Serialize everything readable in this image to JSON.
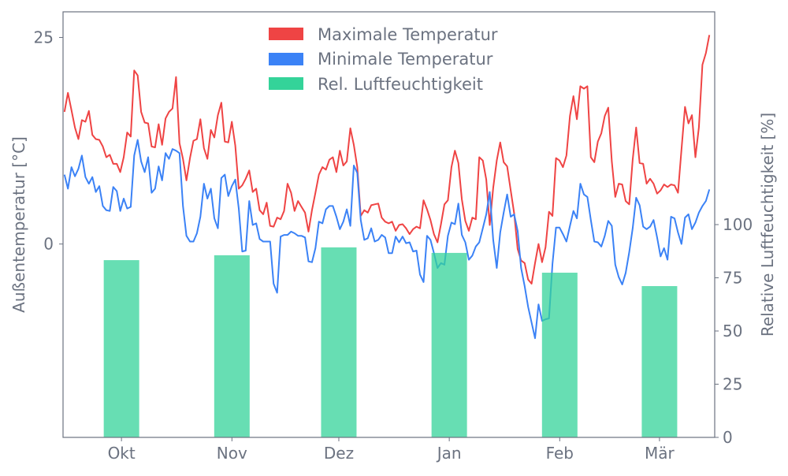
{
  "chart_data": {
    "type": "line+bar",
    "title": "",
    "xlabel": "",
    "ylabel_left": "Außentemperatur [°C]",
    "ylabel_right": "Relative Luftfeuchtigkeit [%]",
    "ylim_left": [
      -23.4,
      28.1
    ],
    "ylim_right": [
      0,
      200
    ],
    "xlim_days": [
      -0.4,
      182.5
    ],
    "x_start_day": 0,
    "x_end_day": 181,
    "x_ticks": [
      {
        "label": "Okt",
        "day": 16
      },
      {
        "label": "Nov",
        "day": 47
      },
      {
        "label": "Dez",
        "day": 77
      },
      {
        "label": "Jan",
        "day": 108
      },
      {
        "label": "Feb",
        "day": 139
      },
      {
        "label": "Mär",
        "day": 167
      }
    ],
    "y_ticks_left": [
      {
        "label": "0",
        "value": 0
      },
      {
        "label": "25",
        "value": 25
      }
    ],
    "y_ticks_right": [
      {
        "label": "0",
        "value": 0
      },
      {
        "label": "25",
        "value": 25
      },
      {
        "label": "50",
        "value": 50
      },
      {
        "label": "75",
        "value": 75
      },
      {
        "label": "100",
        "value": 100
      }
    ],
    "grid": false,
    "legend_position": "top-center",
    "series": [
      {
        "name": "Maximale Temperatur",
        "type": "line",
        "axis": "left",
        "color": "#ef4444",
        "values": [
          16.0,
          18.3,
          16.2,
          14.1,
          12.7,
          15.0,
          14.8,
          16.1,
          13.2,
          12.7,
          12.6,
          11.8,
          10.5,
          10.8,
          9.7,
          9.7,
          8.7,
          10.5,
          13.5,
          13.0,
          21.0,
          20.4,
          16.0,
          14.7,
          14.6,
          11.8,
          11.7,
          14.5,
          12.0,
          15.2,
          16.0,
          16.4,
          20.2,
          12.2,
          10.3,
          7.7,
          10.4,
          12.5,
          12.7,
          15.1,
          11.6,
          10.3,
          13.8,
          12.9,
          15.6,
          17.1,
          12.4,
          12.3,
          14.8,
          11.9,
          6.7,
          7.1,
          7.9,
          8.9,
          6.3,
          6.7,
          4.1,
          3.6,
          5.0,
          2.2,
          2.1,
          3.2,
          3.0,
          4.0,
          7.3,
          6.2,
          4.0,
          5.2,
          4.5,
          3.8,
          1.5,
          4.1,
          6.2,
          8.4,
          9.3,
          9.0,
          10.2,
          10.5,
          8.7,
          11.3,
          9.5,
          10.0,
          14.0,
          12.0,
          9.3,
          3.4,
          4.1,
          3.8,
          4.7,
          4.8,
          4.9,
          3.2,
          2.7,
          2.5,
          2.7,
          1.6,
          2.3,
          2.4,
          1.9,
          1.2,
          1.8,
          2.1,
          1.9,
          5.3,
          4.2,
          2.9,
          1.2,
          0.2,
          2.4,
          4.8,
          5.3,
          9.3,
          11.3,
          9.8,
          5.4,
          2.8,
          1.6,
          3.2,
          3.0,
          10.5,
          10.1,
          7.8,
          2.3,
          6.8,
          10.1,
          12.3,
          9.9,
          9.4,
          6.5,
          3.7,
          -0.6,
          -2.0,
          -2.3,
          -4.3,
          -4.8,
          -2.3,
          0.0,
          -2.2,
          -0.4,
          3.9,
          3.4,
          10.4,
          10.1,
          9.3,
          10.7,
          15.5,
          17.9,
          15.1,
          19.1,
          18.8,
          19.1,
          10.5,
          9.9,
          12.4,
          13.4,
          15.5,
          16.5,
          10.0,
          5.7,
          7.3,
          7.2,
          5.2,
          4.8,
          10.2,
          14.1,
          9.8,
          9.7,
          7.3,
          7.9,
          7.3,
          6.1,
          6.5,
          7.2,
          6.9,
          7.2,
          7.1,
          6.2,
          11.4,
          16.6,
          14.6,
          15.6,
          10.5,
          14.1,
          21.7,
          23.1,
          25.3
        ]
      },
      {
        "name": "Minimale Temperatur",
        "type": "line",
        "axis": "left",
        "color": "#3b82f6",
        "values": [
          8.4,
          6.7,
          9.3,
          8.2,
          9.1,
          10.7,
          8.1,
          7.3,
          8.1,
          6.3,
          7.0,
          4.6,
          4.1,
          4.0,
          6.9,
          6.4,
          4.0,
          5.5,
          4.3,
          4.5,
          10.7,
          12.6,
          10.0,
          8.7,
          10.5,
          6.2,
          6.7,
          9.4,
          7.7,
          11.0,
          10.3,
          11.5,
          11.3,
          11.0,
          4.6,
          1.0,
          0.3,
          0.3,
          1.3,
          3.3,
          7.3,
          5.5,
          6.7,
          3.1,
          1.9,
          8.0,
          8.4,
          5.8,
          7.0,
          7.8,
          4.3,
          -0.9,
          -0.8,
          5.2,
          2.3,
          2.5,
          0.6,
          0.3,
          0.3,
          0.3,
          -4.8,
          -5.9,
          0.9,
          1.1,
          1.1,
          1.5,
          1.3,
          1.0,
          1.0,
          0.8,
          -2.1,
          -2.2,
          -0.5,
          2.7,
          2.5,
          4.2,
          4.6,
          4.6,
          3.3,
          1.8,
          2.7,
          4.2,
          2.2,
          9.5,
          8.6,
          2.9,
          0.5,
          0.7,
          1.9,
          0.3,
          0.5,
          1.1,
          0.8,
          -1.1,
          -1.1,
          0.9,
          0.2,
          0.9,
          0.1,
          0.2,
          -0.9,
          -0.8,
          -3.7,
          -4.6,
          1.0,
          0.5,
          -1.1,
          -2.9,
          -2.3,
          -2.5,
          1.0,
          2.6,
          2.4,
          4.9,
          1.1,
          0.2,
          -1.9,
          -1.4,
          -0.3,
          0.2,
          1.9,
          3.6,
          6.3,
          0.5,
          -2.9,
          1.4,
          3.8,
          6.0,
          3.3,
          3.6,
          1.6,
          -2.9,
          -5.1,
          -7.6,
          -9.5,
          -11.4,
          -7.3,
          -9.3,
          -9.1,
          -9.0,
          -2.4,
          2.0,
          2.0,
          1.2,
          0.3,
          2.2,
          4.0,
          3.1,
          7.3,
          6.0,
          5.7,
          2.9,
          0.3,
          0.2,
          -0.3,
          1.0,
          2.8,
          2.2,
          -2.5,
          -4.0,
          -4.9,
          -3.5,
          -1.0,
          1.9,
          5.6,
          4.7,
          2.1,
          1.8,
          2.1,
          2.9,
          0.8,
          -1.5,
          -0.5,
          -1.9,
          3.3,
          3.1,
          1.4,
          0.0,
          3.2,
          3.6,
          1.8,
          2.6,
          3.8,
          4.6,
          5.2,
          6.6
        ]
      },
      {
        "name": "Rel. Luftfeuchtigkeit",
        "type": "bar",
        "axis": "right",
        "color": "#34d399",
        "categories": [
          "Okt",
          "Nov",
          "Dez",
          "Jan",
          "Feb",
          "Mär"
        ],
        "days": [
          16,
          47,
          77,
          108,
          139,
          167
        ],
        "values": [
          83.3,
          85.6,
          89.3,
          86.7,
          77.4,
          71.1
        ]
      }
    ]
  }
}
